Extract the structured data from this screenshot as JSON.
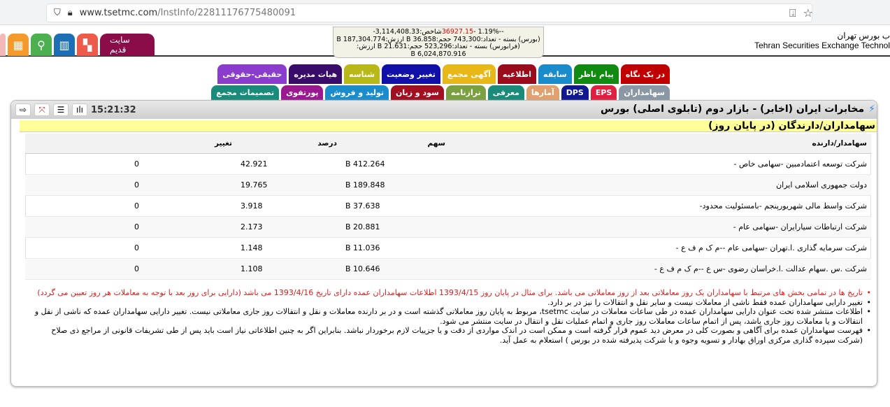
{
  "browser": {
    "url_host": "www.tsetmc.com",
    "url_path": "/InstInfo/22811176775480091"
  },
  "header": {
    "logo_fa": "ب بورس تهران",
    "logo_en": "Tehran Securities Exchange Technol",
    "old_site": "سایت قدیم",
    "index_line1_a": "شاخص:3,114,408.33-",
    "index_line1_change": "36927.15",
    "index_line1_b": "--1.19% -",
    "index_line2": "(بورس) بسته - تعداد:743,300 حجم:36.858 B ارزش:187,304.774 B",
    "index_line3": "(فرابورس) بسته - تعداد:523,296 حجم:21.631 B ارزش:",
    "index_line4": "6,024,870.916 B"
  },
  "icons": [
    {
      "name": "table-icon",
      "color": "#f39a2b"
    },
    {
      "name": "search-icon",
      "color": "#4caf50"
    },
    {
      "name": "book-chart-icon",
      "color": "#1c6fb5"
    },
    {
      "name": "grid-icon",
      "color": "#ef5b4b"
    }
  ],
  "tabs_row1": [
    {
      "label": "در یک نگاه",
      "color": "#c00000"
    },
    {
      "label": "پیام ناظر",
      "color": "#108a10"
    },
    {
      "label": "سابقه",
      "color": "#1a8ccc"
    },
    {
      "label": "اطلاعیه",
      "color": "#9a0b1c"
    },
    {
      "label": "آگهی مجمع",
      "color": "#e8b818"
    },
    {
      "label": "تغییر وضعیت",
      "color": "#1010a8"
    },
    {
      "label": "شناسه",
      "color": "#b8b818"
    },
    {
      "label": "هیات مدیره",
      "color": "#3a0c6a"
    },
    {
      "label": "حقیقی-حقوقی",
      "color": "#8a3ccc"
    }
  ],
  "tabs_row2": [
    {
      "label": "سهامداران",
      "color": "#8a97a4"
    },
    {
      "label": "EPS",
      "color": "#e02040"
    },
    {
      "label": "DPS",
      "color": "#101890"
    },
    {
      "label": "آمارها",
      "color": "#e0a070"
    },
    {
      "label": "معرفی",
      "color": "#1a8a7a"
    },
    {
      "label": "ترازنامه",
      "color": "#7aa040"
    },
    {
      "label": "سود و زیان",
      "color": "#a01020"
    },
    {
      "label": "تولید و فروش",
      "color": "#1a8ccc"
    },
    {
      "label": "پورتفوی",
      "color": "#9a1890"
    },
    {
      "label": "تصمیمات مجمع",
      "color": "#1a8a7a"
    }
  ],
  "panel": {
    "title": "مخابرات ایران (اخابر) - بازار دوم (تابلوی اصلی) بورس",
    "time": "15:21:32",
    "subtitle": "سهامداران/دارندگان (در پایان روز)"
  },
  "table": {
    "columns": [
      "سهامدار/دارنده",
      "سهم",
      "درصد",
      "تغییر",
      ""
    ],
    "rows": [
      [
        "شرکت توسعه اعتمادمبین -سهامی خاص -",
        "412.264 B",
        "42.921",
        "0"
      ],
      [
        "دولت جمهوری اسلامی ایران",
        "189.848 B",
        "19.765",
        "0"
      ],
      [
        "شرکت واسط مالی شهریورپنجم -بامسئولیت محدود-",
        "37.638 B",
        "3.918",
        "0"
      ],
      [
        "شرکت ارتباطات سیارایران -سهامی عام -",
        "20.881 B",
        "2.173",
        "0"
      ],
      [
        "شرکت سرمایه گذاری .ا.تهران -سهامی عام --م ک م ف ع -",
        "11.036 B",
        "1.148",
        "0"
      ],
      [
        "شرکت .س .سهام عدالت .ا.خراسان رضوی -س ع --م ک م ف ع -",
        "10.646 B",
        "1.108",
        "0"
      ]
    ]
  },
  "notes": [
    "تاریخ ها در تمامی بخش های مرتبط با سهامداران یک روز معاملاتی بعد از روز معاملاتی می باشد. برای مثال در پایان روز 1393/4/15 اطلاعات سهامداران عمده دارای تاریخ 1393/4/16 می باشد (دارایی برای روز بعد با توجه به معاملات هر روز تعیین می گردد)",
    "تغییر دارایی سهامداران عمده فقط ناشی از معاملات نیست و سایر نقل و انتقالات را نیز در بر دارد.",
    "اطلاعات منتشر شده تحت عنوان دارایی سهامداران عمده در طی ساعات معاملات در سایت tsetmc، مربوط به پایان روز معاملاتی گذشته است و در بر دارنده معاملات و نقل و انتقالات روز جاری معاملاتی نیست. تغییر دارایی سهامداران عمده که ناشی از نقل و انتقالات و یا معاملات روز جاری باشد، پس از اتمام ساعات معاملات روز جاری و اتمام عملیات نقل و انتقال در سایت منتشر می شود.",
    "فهرست سهامداران عمده برای آگاهی و بصورت کلی در معرض دید عموم قرار گرفته است و ممکن است در اندک مواردی از دقت و یا جزییات لازم برخوردار نباشد. بنابراین اگر به چنین اطلاعاتی نیاز است باید پس از طی تشریفات قانونی از مراجع ذی صلاح (شرکت سپرده گذاری مرکزی اوراق بهادار و تسویه وجوه و یا شرکت پذیرفته شده در بورس ) استعلام به عمل آید."
  ]
}
